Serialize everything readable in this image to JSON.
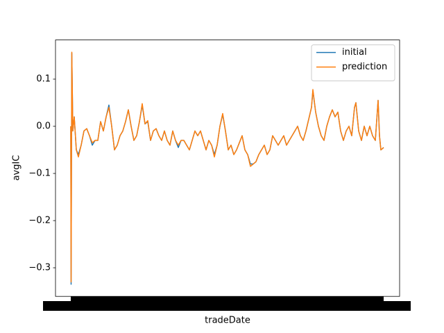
{
  "chart_data": {
    "type": "line",
    "xlabel": "tradeDate",
    "ylabel": "avgIC",
    "x": [
      0,
      0.125,
      0.375,
      0.75,
      1.25,
      2,
      2.75,
      3.75,
      4.75,
      5.75,
      6.75,
      7.75,
      8.75,
      9.75,
      10.75,
      11.75,
      12.75,
      13.75,
      14.75,
      15.75,
      16.75,
      17.75,
      18.75,
      19.75,
      20.75,
      21.75,
      22.75,
      23.75,
      24.75,
      25.75,
      26.75,
      27.75,
      28.75,
      29.75,
      30.75,
      31.75,
      32.75,
      33.75,
      34.75,
      35.75,
      36.75,
      37.75,
      38.75,
      39.75,
      40.75,
      41.75,
      42.75,
      43.75,
      44.75,
      45.75,
      46.75,
      47.75,
      48.75,
      49.75,
      50.75,
      51.75,
      52.75,
      53.75,
      54.75,
      55.75,
      56.75,
      57.75,
      58.75,
      59.75,
      60.75,
      61.75,
      62.75,
      63.75,
      64.75,
      65.75,
      66.75,
      67.75,
      68.75,
      69.75,
      70.75,
      71.75,
      72.75,
      73.75,
      74.75,
      75.75,
      76.75,
      77.75,
      78.75,
      79.75,
      80.75,
      81.75,
      82.75,
      83.75,
      84.75,
      85.75,
      86.75,
      87.25,
      88.25,
      89.25,
      90.25,
      91.25,
      92.25,
      93.25,
      94.25,
      95.25,
      96.25,
      97.25,
      98.25,
      99.25,
      100.25,
      101.25,
      102.25,
      102.75,
      103.75,
      104.75,
      105.75,
      106.75,
      107.75,
      108.75,
      109.75,
      110.75,
      111.25,
      111.75,
      112.75
    ],
    "series": [
      {
        "name": "initial",
        "color": "#1f77b4",
        "values": [
          0,
          -0.335,
          0.155,
          -0.01,
          0.02,
          -0.05,
          -0.06,
          -0.04,
          -0.01,
          -0.005,
          -0.02,
          -0.04,
          -0.03,
          -0.03,
          0.01,
          -0.01,
          0.02,
          0.045,
          0,
          -0.05,
          -0.04,
          -0.02,
          -0.01,
          0.01,
          0.035,
          0,
          -0.03,
          -0.02,
          0.01,
          0.045,
          0.005,
          0.01,
          -0.03,
          -0.01,
          -0.005,
          -0.02,
          -0.03,
          -0.01,
          -0.03,
          -0.04,
          -0.01,
          -0.03,
          -0.045,
          -0.03,
          -0.03,
          -0.04,
          -0.05,
          -0.03,
          -0.01,
          -0.02,
          -0.01,
          -0.03,
          -0.05,
          -0.03,
          -0.04,
          -0.06,
          -0.04,
          0,
          0.025,
          -0.01,
          -0.05,
          -0.04,
          -0.06,
          -0.05,
          -0.035,
          -0.02,
          -0.05,
          -0.06,
          -0.08,
          -0.08,
          -0.075,
          -0.06,
          -0.05,
          -0.04,
          -0.06,
          -0.05,
          -0.02,
          -0.03,
          -0.04,
          -0.03,
          -0.02,
          -0.04,
          -0.03,
          -0.02,
          -0.01,
          0,
          -0.02,
          -0.03,
          -0.01,
          0.015,
          0.04,
          0.075,
          0.03,
          0,
          -0.02,
          -0.03,
          0,
          0.02,
          0.035,
          0.02,
          0.03,
          -0.01,
          -0.03,
          -0.01,
          0,
          -0.02,
          0.04,
          0.05,
          -0.01,
          -0.03,
          0,
          -0.02,
          0,
          -0.02,
          -0.03,
          0.055,
          -0.02,
          -0.05,
          -0.045
        ]
      },
      {
        "name": "prediction",
        "color": "#ff7f0e",
        "values": [
          0,
          -0.33,
          0.157,
          -0.01,
          0.02,
          -0.05,
          -0.065,
          -0.04,
          -0.01,
          -0.005,
          -0.02,
          -0.035,
          -0.03,
          -0.03,
          0.01,
          -0.01,
          0.02,
          0.04,
          0,
          -0.05,
          -0.04,
          -0.02,
          -0.01,
          0.01,
          0.035,
          0,
          -0.03,
          -0.02,
          0.01,
          0.048,
          0.005,
          0.012,
          -0.03,
          -0.01,
          -0.005,
          -0.02,
          -0.03,
          -0.01,
          -0.03,
          -0.04,
          -0.01,
          -0.03,
          -0.04,
          -0.03,
          -0.03,
          -0.04,
          -0.05,
          -0.03,
          -0.01,
          -0.02,
          -0.01,
          -0.03,
          -0.05,
          -0.03,
          -0.04,
          -0.065,
          -0.04,
          0,
          0.027,
          -0.01,
          -0.05,
          -0.04,
          -0.06,
          -0.05,
          -0.035,
          -0.02,
          -0.05,
          -0.06,
          -0.085,
          -0.08,
          -0.075,
          -0.06,
          -0.05,
          -0.04,
          -0.06,
          -0.05,
          -0.02,
          -0.03,
          -0.04,
          -0.03,
          -0.02,
          -0.04,
          -0.03,
          -0.02,
          -0.01,
          0,
          -0.02,
          -0.03,
          -0.01,
          0.015,
          0.04,
          0.078,
          0.03,
          0,
          -0.02,
          -0.03,
          0,
          0.02,
          0.035,
          0.02,
          0.03,
          -0.01,
          -0.03,
          -0.01,
          0,
          -0.02,
          0.04,
          0.05,
          -0.01,
          -0.03,
          0,
          -0.02,
          0,
          -0.02,
          -0.03,
          0.055,
          -0.02,
          -0.05,
          -0.045
        ]
      }
    ],
    "xlim": [
      -5.5,
      118.5
    ],
    "ylim": [
      -0.3606,
      0.183
    ],
    "yticks": [
      0.1,
      {
        "value": 0,
        "label": "0.0"
      },
      {
        "value": -0.1,
        "label": "−0.1"
      },
      {
        "value": -0.2,
        "label": "−0.2"
      },
      {
        "value": -0.3,
        "label": "−0.3"
      }
    ],
    "legend": "upper right",
    "grid": false
  }
}
